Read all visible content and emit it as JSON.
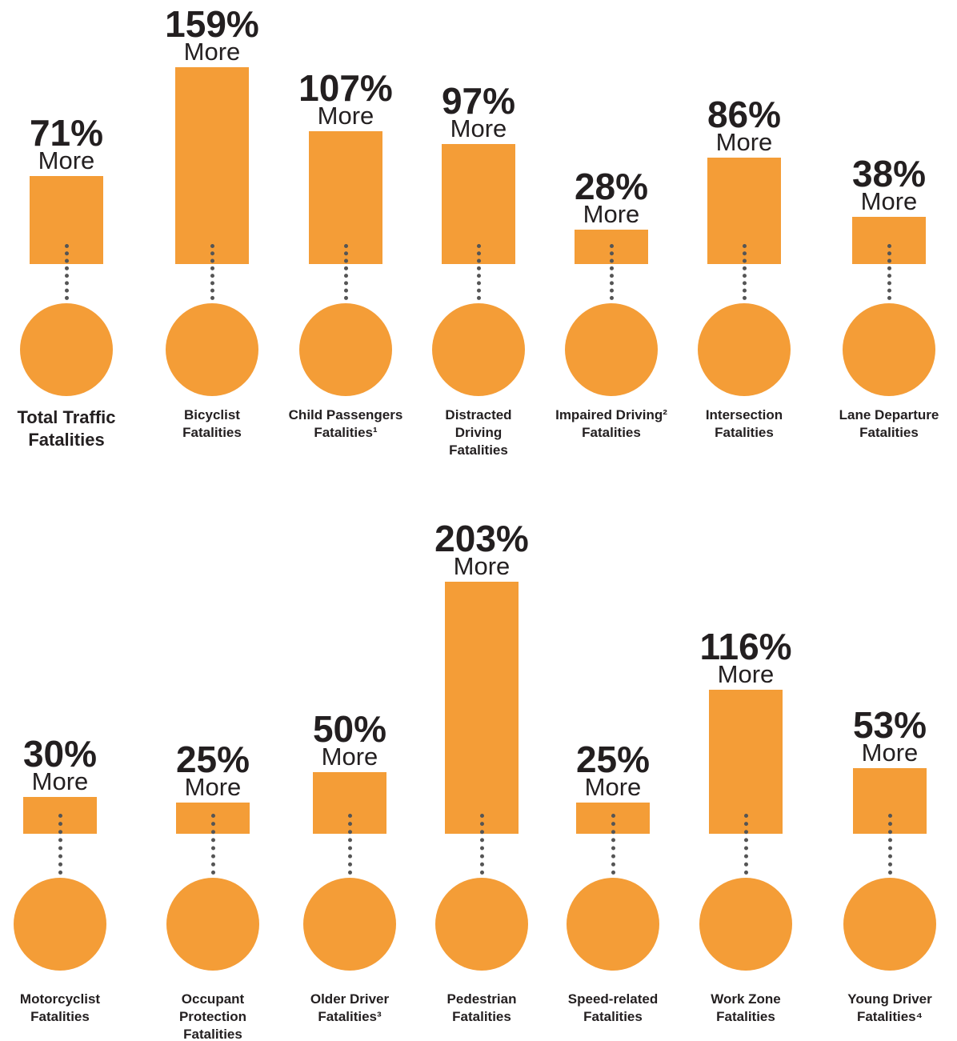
{
  "chart_data": [
    {
      "type": "bar",
      "color": "#f49d37",
      "annotation": "More",
      "categories": [
        "Total Traffic\nFatalities",
        "Bicyclist\nFatalities",
        "Child Passengers\nFatalities¹",
        "Distracted\nDriving\nFatalities",
        "Impaired Driving²\nFatalities",
        "Intersection\nFatalities",
        "Lane Departure\nFatalities"
      ],
      "values": [
        71,
        159,
        107,
        97,
        28,
        86,
        38
      ],
      "value_labels": [
        "71%",
        "159%",
        "107%",
        "97%",
        "28%",
        "86%",
        "38%"
      ]
    },
    {
      "type": "bar",
      "color": "#f49d37",
      "annotation": "More",
      "categories": [
        "Motorcyclist\nFatalities",
        "Occupant\nProtection\nFatalities",
        "Older Driver\nFatalities³",
        "Pedestrian\nFatalities",
        "Speed-related\nFatalities",
        "Work Zone\nFatalities",
        "Young Driver\nFatalities⁴"
      ],
      "values": [
        30,
        25,
        50,
        203,
        25,
        116,
        53
      ],
      "value_labels": [
        "30%",
        "25%",
        "50%",
        "203%",
        "25%",
        "116%",
        "53%"
      ]
    }
  ]
}
